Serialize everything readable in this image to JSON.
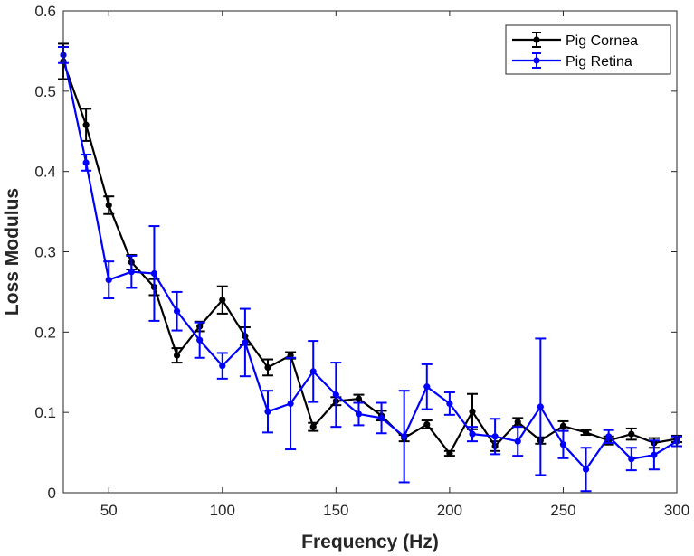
{
  "colors": {
    "cornea": "#000000",
    "retina": "#0000ff",
    "axis": "#262626",
    "background": "#ffffff"
  },
  "chart_data": {
    "type": "line",
    "title": "",
    "xlabel": "Frequency (Hz)",
    "ylabel": "Loss Modulus",
    "xlim": [
      30,
      300
    ],
    "ylim": [
      0,
      0.6
    ],
    "xticks": [
      50,
      100,
      150,
      200,
      250,
      300
    ],
    "yticks": [
      0,
      0.1,
      0.2,
      0.3,
      0.4,
      0.5,
      0.6
    ],
    "xtick_labels": [
      "50",
      "100",
      "150",
      "200",
      "250",
      "300"
    ],
    "ytick_labels": [
      "0",
      "0.1",
      "0.2",
      "0.3",
      "0.4",
      "0.5",
      "0.6"
    ],
    "grid": false,
    "legend_position": "top-right",
    "x": [
      30,
      40,
      50,
      60,
      70,
      80,
      90,
      100,
      110,
      120,
      130,
      140,
      150,
      160,
      170,
      180,
      190,
      200,
      210,
      220,
      230,
      240,
      250,
      260,
      270,
      280,
      290,
      300
    ],
    "series": [
      {
        "name": "Pig Cornea",
        "color": "#000000",
        "values": [
          0.537,
          0.458,
          0.358,
          0.287,
          0.256,
          0.171,
          0.207,
          0.24,
          0.195,
          0.156,
          0.171,
          0.082,
          0.114,
          0.117,
          0.096,
          0.068,
          0.085,
          0.049,
          0.101,
          0.058,
          0.088,
          0.065,
          0.083,
          0.075,
          0.065,
          0.073,
          0.062,
          0.067
        ],
        "errors": [
          0.022,
          0.02,
          0.011,
          0.009,
          0.01,
          0.009,
          0.006,
          0.017,
          0.011,
          0.01,
          0.004,
          0.005,
          0.005,
          0.005,
          0.006,
          0.004,
          0.005,
          0.003,
          0.022,
          0.006,
          0.005,
          0.004,
          0.006,
          0.003,
          0.005,
          0.007,
          0.006,
          0.004
        ]
      },
      {
        "name": "Pig Retina",
        "color": "#0000ff",
        "values": [
          0.545,
          0.411,
          0.265,
          0.275,
          0.273,
          0.226,
          0.19,
          0.158,
          0.187,
          0.101,
          0.111,
          0.151,
          0.122,
          0.098,
          0.093,
          0.07,
          0.132,
          0.111,
          0.073,
          0.07,
          0.064,
          0.107,
          0.06,
          0.029,
          0.07,
          0.042,
          0.047,
          0.064
        ],
        "errors": [
          0.01,
          0.01,
          0.023,
          0.02,
          0.059,
          0.024,
          0.022,
          0.016,
          0.042,
          0.026,
          0.057,
          0.038,
          0.04,
          0.014,
          0.019,
          0.057,
          0.028,
          0.014,
          0.009,
          0.022,
          0.018,
          0.085,
          0.017,
          0.027,
          0.008,
          0.014,
          0.018,
          0.006
        ]
      }
    ]
  }
}
